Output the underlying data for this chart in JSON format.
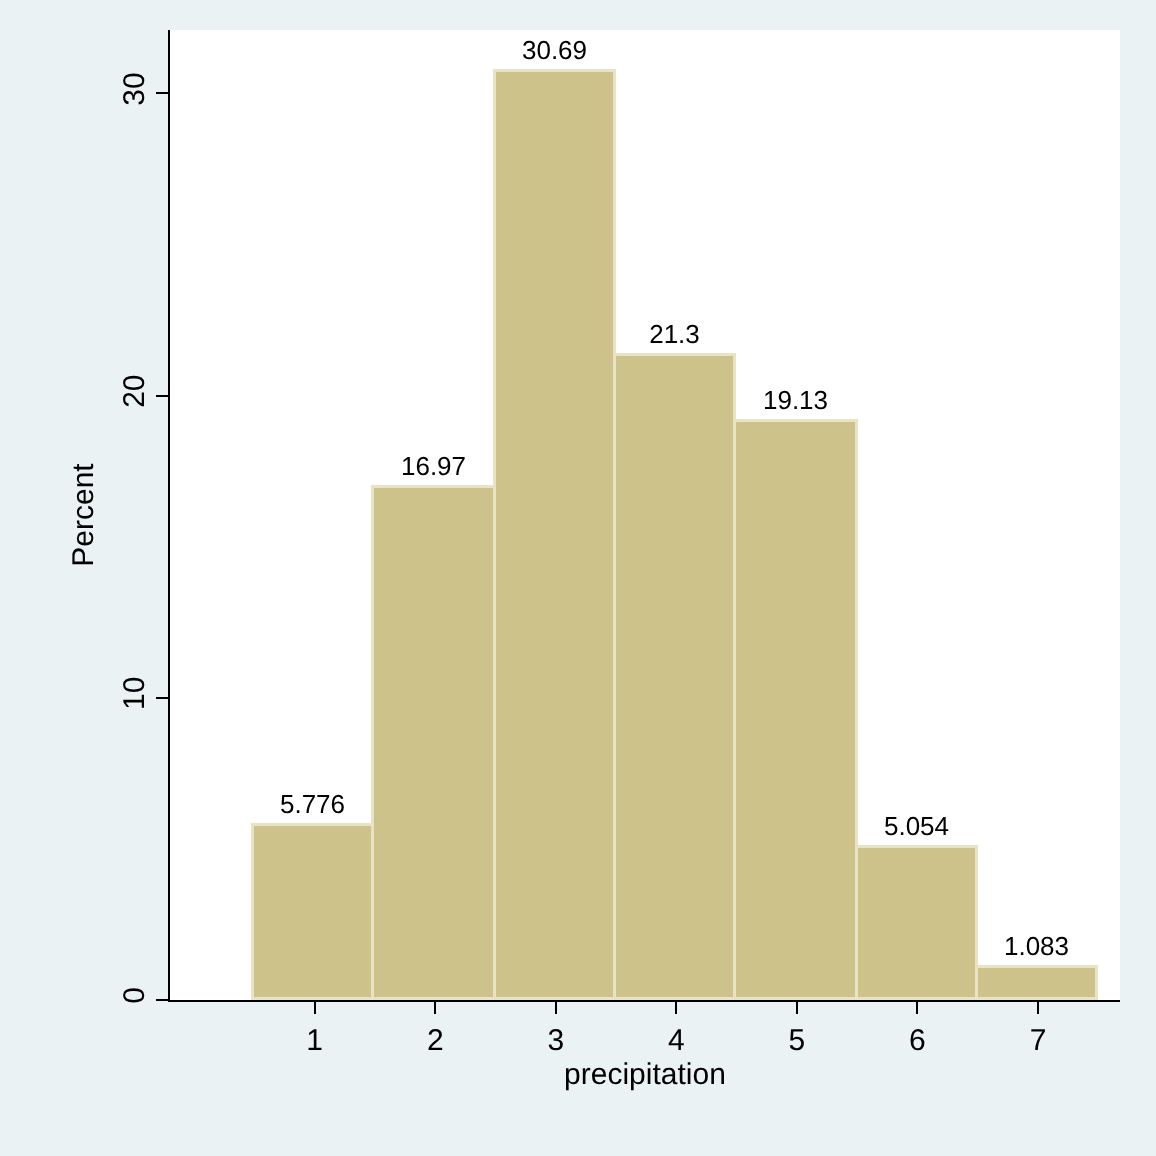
{
  "chart_data": {
    "type": "histogram",
    "xlabel": "precipitation",
    "ylabel": "Percent",
    "bins": [
      0.5,
      1.5,
      2.5,
      3.5,
      4.5,
      5.5,
      6.5,
      7.5
    ],
    "values": [
      5.776,
      16.97,
      30.69,
      21.3,
      19.13,
      5.054,
      1.083
    ],
    "color": "#cdc38a",
    "data_labels": true,
    "xlim": [
      -0.2,
      7.68
    ],
    "xticks": [
      1,
      2,
      3,
      4,
      5,
      6,
      7
    ],
    "ylim": [
      0,
      32.1
    ],
    "yticks": [
      0,
      10,
      20,
      30
    ]
  }
}
